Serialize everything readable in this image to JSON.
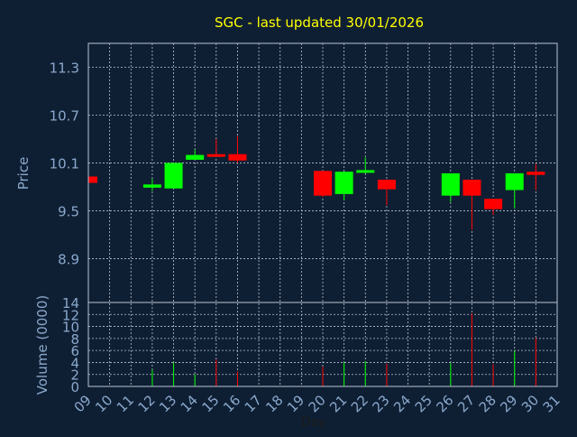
{
  "chart_data": {
    "type": "candlestick",
    "title": "SGC - last updated 30/01/2026",
    "xlabel": "Day",
    "ylabel_price": "Price",
    "ylabel_volume": "Volume (0000)",
    "x_ticks": [
      "09",
      "10",
      "11",
      "12",
      "13",
      "14",
      "15",
      "16",
      "17",
      "18",
      "19",
      "20",
      "21",
      "22",
      "23",
      "24",
      "25",
      "26",
      "27",
      "28",
      "29",
      "30",
      "31"
    ],
    "price_ticks": [
      "11.3",
      "10.7",
      "10.1",
      "9.5",
      "8.9"
    ],
    "volume_ticks": [
      "0",
      "2",
      "4",
      "6",
      "8",
      "10",
      "12",
      "14"
    ],
    "price_range": [
      8.35,
      11.6
    ],
    "volume_range": [
      0,
      14
    ],
    "grid": true,
    "colors": {
      "background": "#0f1f33",
      "up": "#00ff00",
      "down": "#ff0000",
      "grid": "#b8c4d4",
      "axis_text": "#8aa8cc",
      "title": "#ffff00"
    },
    "candles": [
      {
        "day": "09",
        "open": 9.93,
        "close": 9.85,
        "high": 9.93,
        "low": 9.85
      },
      {
        "day": "12",
        "open": 9.79,
        "close": 9.83,
        "high": 9.9,
        "low": 9.75
      },
      {
        "day": "13",
        "open": 9.78,
        "close": 10.1,
        "high": 10.1,
        "low": 9.78
      },
      {
        "day": "14",
        "open": 10.14,
        "close": 10.2,
        "high": 10.27,
        "low": 10.14
      },
      {
        "day": "15",
        "open": 10.21,
        "close": 10.19,
        "high": 10.4,
        "low": 10.19
      },
      {
        "day": "16",
        "open": 10.21,
        "close": 10.13,
        "high": 10.44,
        "low": 10.1
      },
      {
        "day": "20",
        "open": 10.0,
        "close": 9.69,
        "high": 10.0,
        "low": 9.67
      },
      {
        "day": "21",
        "open": 9.71,
        "close": 9.99,
        "high": 9.99,
        "low": 9.63
      },
      {
        "day": "22",
        "open": 9.98,
        "close": 10.01,
        "high": 10.17,
        "low": 9.97
      },
      {
        "day": "23",
        "open": 9.89,
        "close": 9.77,
        "high": 9.89,
        "low": 9.57
      },
      {
        "day": "26",
        "open": 9.69,
        "close": 9.97,
        "high": 9.97,
        "low": 9.61
      },
      {
        "day": "27",
        "open": 9.89,
        "close": 9.69,
        "high": 9.89,
        "low": 9.26
      },
      {
        "day": "28",
        "open": 9.65,
        "close": 9.52,
        "high": 9.65,
        "low": 9.45
      },
      {
        "day": "29",
        "open": 9.76,
        "close": 9.97,
        "high": 9.97,
        "low": 9.53
      },
      {
        "day": "30",
        "open": 9.99,
        "close": 9.95,
        "high": 10.09,
        "low": 9.76
      }
    ],
    "volume": [
      {
        "day": "12",
        "value": 2.8,
        "dir": "up"
      },
      {
        "day": "13",
        "value": 4.0,
        "dir": "up"
      },
      {
        "day": "14",
        "value": 2.0,
        "dir": "up"
      },
      {
        "day": "15",
        "value": 4.5,
        "dir": "down"
      },
      {
        "day": "16",
        "value": 2.5,
        "dir": "down"
      },
      {
        "day": "20",
        "value": 3.3,
        "dir": "down"
      },
      {
        "day": "21",
        "value": 4.0,
        "dir": "up"
      },
      {
        "day": "22",
        "value": 4.2,
        "dir": "up"
      },
      {
        "day": "23",
        "value": 3.8,
        "dir": "down"
      },
      {
        "day": "26",
        "value": 3.9,
        "dir": "up"
      },
      {
        "day": "27",
        "value": 12.2,
        "dir": "down"
      },
      {
        "day": "28",
        "value": 3.7,
        "dir": "down"
      },
      {
        "day": "29",
        "value": 5.9,
        "dir": "up"
      },
      {
        "day": "30",
        "value": 8.1,
        "dir": "down"
      }
    ]
  }
}
